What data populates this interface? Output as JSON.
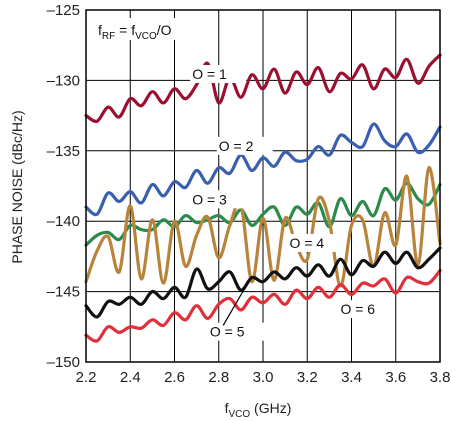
{
  "chart_data": {
    "type": "line",
    "title": "",
    "annotation": {
      "lhs": "f",
      "lhs_sub": "RF",
      "eq": " = f",
      "rhs_sub": "VCO",
      "tail": "/O"
    },
    "xlabel": {
      "main": "f",
      "sub": "VCO",
      "unit": " (GHz)"
    },
    "ylabel": "PHASE NOISE (dBc/Hz)",
    "xlim": [
      2.2,
      3.8
    ],
    "ylim": [
      -150,
      -125
    ],
    "xticks": [
      "2.2",
      "2.4",
      "2.6",
      "2.8",
      "3.0",
      "3.2",
      "3.4",
      "3.6",
      "3.8"
    ],
    "yticks": [
      "-125",
      "-130",
      "-135",
      "-140",
      "-145",
      "-150"
    ],
    "grid": true,
    "colors": {
      "O1": "#9b1030",
      "O2": "#3a5fb0",
      "O3": "#2e8a4a",
      "O4": "#b8843c",
      "O5": "#111111",
      "O6": "#e0303c"
    },
    "series": [
      {
        "key": "O1",
        "name": "O = 1",
        "x": [
          2.2,
          2.25,
          2.3,
          2.35,
          2.4,
          2.45,
          2.5,
          2.55,
          2.6,
          2.65,
          2.7,
          2.75,
          2.8,
          2.85,
          2.9,
          2.95,
          3.0,
          3.05,
          3.1,
          3.15,
          3.2,
          3.25,
          3.3,
          3.35,
          3.4,
          3.45,
          3.5,
          3.55,
          3.6,
          3.65,
          3.7,
          3.75,
          3.8
        ],
        "y": [
          -132.5,
          -132.9,
          -131.9,
          -132.6,
          -131.3,
          -131.8,
          -130.8,
          -131.6,
          -130.6,
          -131.3,
          -130.3,
          -128.8,
          -131.6,
          -129.8,
          -131.2,
          -129.6,
          -130.6,
          -129.2,
          -130.9,
          -129.4,
          -130.3,
          -129.1,
          -130.8,
          -129.5,
          -129.9,
          -128.9,
          -130.6,
          -129.2,
          -129.8,
          -128.5,
          -130.2,
          -129.0,
          -128.2
        ]
      },
      {
        "key": "O2",
        "name": "O = 2",
        "x": [
          2.2,
          2.25,
          2.3,
          2.35,
          2.4,
          2.45,
          2.5,
          2.55,
          2.6,
          2.65,
          2.7,
          2.75,
          2.8,
          2.85,
          2.9,
          2.95,
          3.0,
          3.05,
          3.1,
          3.15,
          3.2,
          3.25,
          3.3,
          3.35,
          3.4,
          3.45,
          3.5,
          3.55,
          3.6,
          3.65,
          3.7,
          3.75,
          3.8
        ],
        "y": [
          -139.0,
          -139.5,
          -138.0,
          -138.6,
          -137.9,
          -138.7,
          -137.4,
          -138.2,
          -137.2,
          -137.6,
          -136.4,
          -137.3,
          -136.2,
          -136.6,
          -135.3,
          -136.4,
          -135.5,
          -136.1,
          -135.1,
          -135.7,
          -135.6,
          -134.7,
          -135.3,
          -133.9,
          -134.4,
          -134.7,
          -133.1,
          -134.3,
          -134.7,
          -133.8,
          -135.1,
          -134.6,
          -133.3
        ]
      },
      {
        "key": "O3",
        "name": "O = 3",
        "x": [
          2.2,
          2.25,
          2.3,
          2.35,
          2.4,
          2.45,
          2.5,
          2.55,
          2.6,
          2.65,
          2.7,
          2.75,
          2.8,
          2.85,
          2.9,
          2.95,
          3.0,
          3.05,
          3.1,
          3.15,
          3.2,
          3.25,
          3.3,
          3.35,
          3.4,
          3.45,
          3.5,
          3.55,
          3.6,
          3.65,
          3.7,
          3.75,
          3.8
        ],
        "y": [
          -141.7,
          -141.0,
          -140.8,
          -141.3,
          -140.3,
          -140.6,
          -140.6,
          -139.9,
          -140.4,
          -139.6,
          -140.1,
          -139.9,
          -139.6,
          -140.1,
          -139.2,
          -140.3,
          -139.5,
          -139.0,
          -140.3,
          -139.0,
          -139.5,
          -138.7,
          -140.4,
          -138.4,
          -139.6,
          -138.6,
          -139.6,
          -137.7,
          -138.5,
          -137.3,
          -138.4,
          -138.8,
          -137.4
        ]
      },
      {
        "key": "O4",
        "name": "O = 4",
        "x": [
          2.2,
          2.25,
          2.3,
          2.35,
          2.4,
          2.45,
          2.5,
          2.55,
          2.6,
          2.65,
          2.7,
          2.75,
          2.8,
          2.85,
          2.9,
          2.95,
          3.0,
          3.05,
          3.1,
          3.15,
          3.2,
          3.25,
          3.3,
          3.35,
          3.4,
          3.45,
          3.5,
          3.55,
          3.6,
          3.65,
          3.7,
          3.75,
          3.8
        ],
        "y": [
          -144.3,
          -142.1,
          -141.1,
          -143.6,
          -138.9,
          -144.1,
          -139.9,
          -144.4,
          -140.0,
          -143.2,
          -141.0,
          -139.7,
          -142.6,
          -140.3,
          -138.8,
          -144.3,
          -139.8,
          -144.2,
          -139.8,
          -141.7,
          -142.7,
          -138.4,
          -140.0,
          -144.6,
          -140.3,
          -139.9,
          -143.2,
          -139.4,
          -141.7,
          -136.8,
          -143.1,
          -136.2,
          -141.6
        ]
      },
      {
        "key": "O5",
        "name": "O = 5",
        "x": [
          2.2,
          2.25,
          2.3,
          2.35,
          2.4,
          2.45,
          2.5,
          2.55,
          2.6,
          2.65,
          2.7,
          2.75,
          2.8,
          2.85,
          2.9,
          2.95,
          3.0,
          3.05,
          3.1,
          3.15,
          3.2,
          3.25,
          3.3,
          3.35,
          3.4,
          3.45,
          3.5,
          3.55,
          3.6,
          3.65,
          3.7,
          3.75,
          3.8
        ],
        "y": [
          -146.0,
          -146.8,
          -145.7,
          -145.9,
          -145.4,
          -145.9,
          -145.0,
          -145.5,
          -144.7,
          -145.4,
          -143.4,
          -144.8,
          -144.3,
          -143.6,
          -144.9,
          -144.0,
          -144.3,
          -143.6,
          -144.1,
          -143.3,
          -143.9,
          -143.1,
          -143.9,
          -142.7,
          -143.8,
          -142.8,
          -143.2,
          -142.2,
          -143.0,
          -142.2,
          -143.3,
          -142.7,
          -141.9
        ]
      },
      {
        "key": "O6",
        "name": "O = 6",
        "x": [
          2.2,
          2.25,
          2.3,
          2.35,
          2.4,
          2.45,
          2.5,
          2.55,
          2.6,
          2.65,
          2.7,
          2.75,
          2.8,
          2.85,
          2.9,
          2.95,
          3.0,
          3.05,
          3.1,
          3.15,
          3.2,
          3.25,
          3.3,
          3.35,
          3.4,
          3.45,
          3.5,
          3.55,
          3.6,
          3.65,
          3.7,
          3.75,
          3.8
        ],
        "y": [
          -148.1,
          -148.5,
          -147.5,
          -147.9,
          -147.5,
          -147.6,
          -147.0,
          -147.4,
          -146.5,
          -147.0,
          -146.0,
          -146.9,
          -145.9,
          -145.5,
          -146.3,
          -145.4,
          -145.8,
          -145.2,
          -145.9,
          -144.9,
          -145.5,
          -144.7,
          -145.4,
          -144.5,
          -145.2,
          -144.4,
          -144.6,
          -144.1,
          -145.1,
          -144.0,
          -144.3,
          -144.4,
          -143.5
        ]
      }
    ],
    "labels": [
      {
        "text": "O = 1",
        "x": 2.68,
        "y": -129.9
      },
      {
        "text": "O = 2",
        "x": 2.8,
        "y": -135.0
      },
      {
        "text": "O = 3",
        "x": 2.68,
        "y": -138.8
      },
      {
        "text": "O = 4",
        "x": 3.12,
        "y": -141.9
      },
      {
        "text": "O = 5",
        "x": 2.76,
        "y": -148.2
      },
      {
        "text": "O = 6",
        "x": 3.35,
        "y": -146.6
      }
    ]
  }
}
